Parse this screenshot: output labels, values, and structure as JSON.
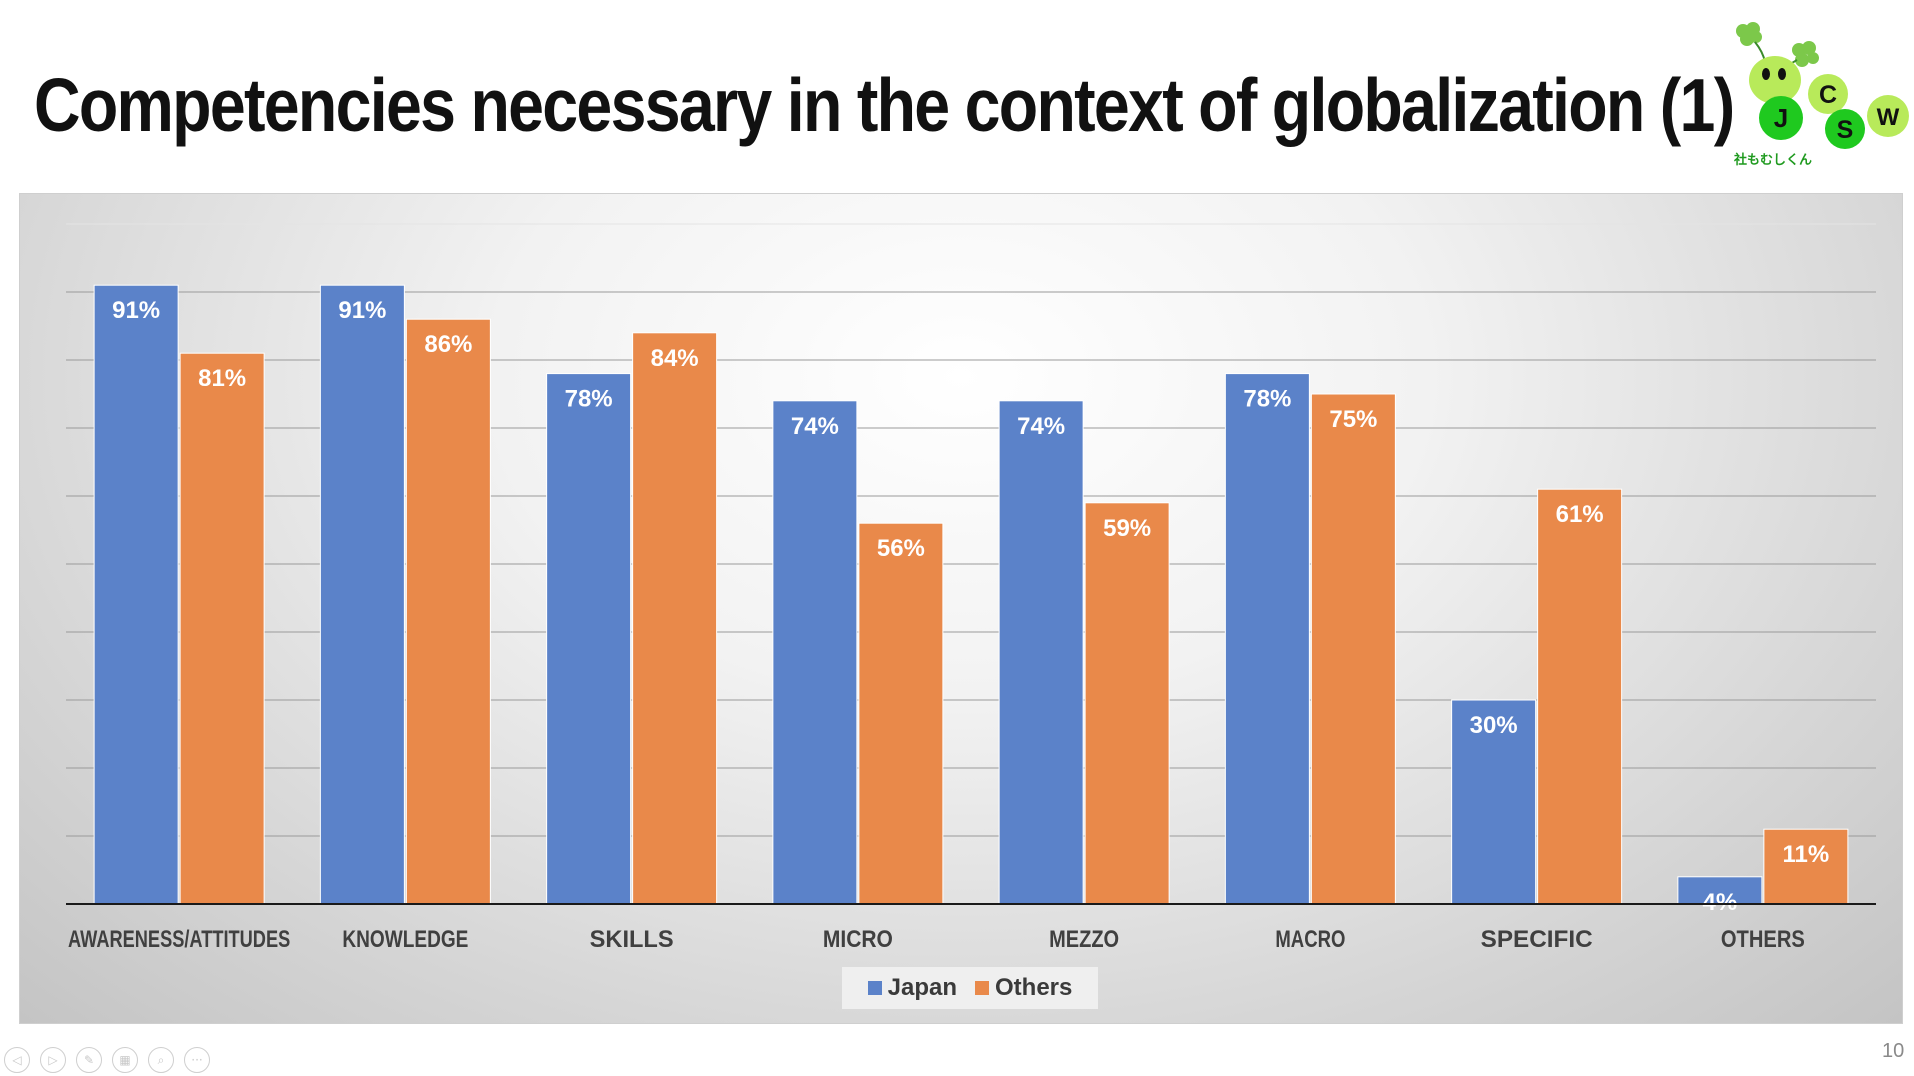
{
  "slide": {
    "title": "Competencies necessary in the context of globalization (1)",
    "page_number": "10"
  },
  "logo": {
    "letters": [
      "J",
      "C",
      "S",
      "W"
    ],
    "caption": "社もむしくん"
  },
  "legend": {
    "series": [
      {
        "name": "Japan",
        "color": "#5B82C9"
      },
      {
        "name": "Others",
        "color": "#E9894A"
      }
    ]
  },
  "toolbar": {
    "buttons": [
      {
        "icon": "previous-icon",
        "glyph": "◁"
      },
      {
        "icon": "next-icon",
        "glyph": "▷"
      },
      {
        "icon": "pen-icon",
        "glyph": "✎"
      },
      {
        "icon": "slides-icon",
        "glyph": "▦"
      },
      {
        "icon": "zoom-icon",
        "glyph": "⌕"
      },
      {
        "icon": "more-icon",
        "glyph": "···"
      }
    ]
  },
  "chart_data": {
    "type": "bar",
    "categories": [
      "AWARENESS/ATTITUDES",
      "KNOWLEDGE",
      "SKILLS",
      "MICRO",
      "MEZZO",
      "MACRO",
      "SPECIFIC",
      "OTHERS"
    ],
    "series": [
      {
        "name": "Japan",
        "color": "#5B82C9",
        "values": [
          91,
          91,
          78,
          74,
          74,
          78,
          30,
          4
        ],
        "labels": [
          "91%",
          "91%",
          "78%",
          "74%",
          "74%",
          "78%",
          "30%",
          "4%"
        ]
      },
      {
        "name": "Others",
        "color": "#E9894A",
        "values": [
          81,
          86,
          84,
          56,
          59,
          75,
          61,
          11
        ],
        "labels": [
          "81%",
          "86%",
          "84%",
          "56%",
          "59%",
          "75%",
          "61%",
          "11%"
        ]
      }
    ],
    "ylim": [
      0,
      100
    ],
    "y_axis_visible": false,
    "grid": true,
    "legend_position": "bottom",
    "data_labels": "inside-top"
  }
}
